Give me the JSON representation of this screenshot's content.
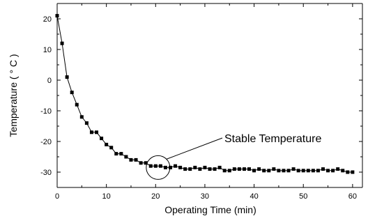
{
  "chart_data": {
    "type": "scatter",
    "xlabel": "Operating Time (min)",
    "ylabel": "Temperature ( ° C )",
    "xlim": [
      0,
      62
    ],
    "ylim": [
      -35,
      25
    ],
    "xticks": [
      0,
      10,
      20,
      30,
      40,
      50,
      60
    ],
    "xtick_labels": [
      "0",
      "10",
      "20",
      "30",
      "40",
      "50",
      "60"
    ],
    "yticks": [
      20,
      10,
      0,
      -10,
      -20,
      -30
    ],
    "ytick_labels": [
      "20",
      "10",
      "0",
      "-10",
      "-20",
      "-30"
    ],
    "grid": false,
    "annotation": {
      "text": "Stable Temperature",
      "circle_center": [
        20.5,
        -28.5
      ]
    },
    "series": [
      {
        "marker": "square",
        "connected": true,
        "color": "#000000",
        "x": [
          0,
          1,
          2,
          3,
          4,
          5,
          6,
          7,
          8,
          9,
          10,
          11,
          12,
          13,
          14,
          15,
          16,
          17,
          18,
          19,
          20,
          21,
          22,
          23,
          24,
          25,
          26,
          27,
          28,
          29,
          30,
          31,
          32,
          33,
          34,
          35,
          36,
          37,
          38,
          39,
          40,
          41,
          42,
          43,
          44,
          45,
          46,
          47,
          48,
          49,
          50,
          51,
          52,
          53,
          54,
          55,
          56,
          57,
          58,
          59,
          60
        ],
        "y": [
          21,
          12,
          1,
          -4,
          -8,
          -12,
          -14,
          -17,
          -17,
          -19,
          -21,
          -22,
          -24,
          -24,
          -25,
          -26,
          -26,
          -27,
          -27,
          -28,
          -28,
          -28,
          -28.5,
          -28.5,
          -28,
          -28.5,
          -29,
          -29,
          -28.5,
          -29,
          -28.5,
          -29,
          -29,
          -28.5,
          -29.5,
          -29.5,
          -29,
          -29,
          -29,
          -29,
          -29.5,
          -29,
          -29.5,
          -29.5,
          -29,
          -29.5,
          -29.5,
          -29.5,
          -29,
          -29.5,
          -29.5,
          -29.5,
          -29.5,
          -29.5,
          -29,
          -29.5,
          -29.5,
          -29,
          -29.5,
          -30,
          -30
        ]
      }
    ]
  }
}
